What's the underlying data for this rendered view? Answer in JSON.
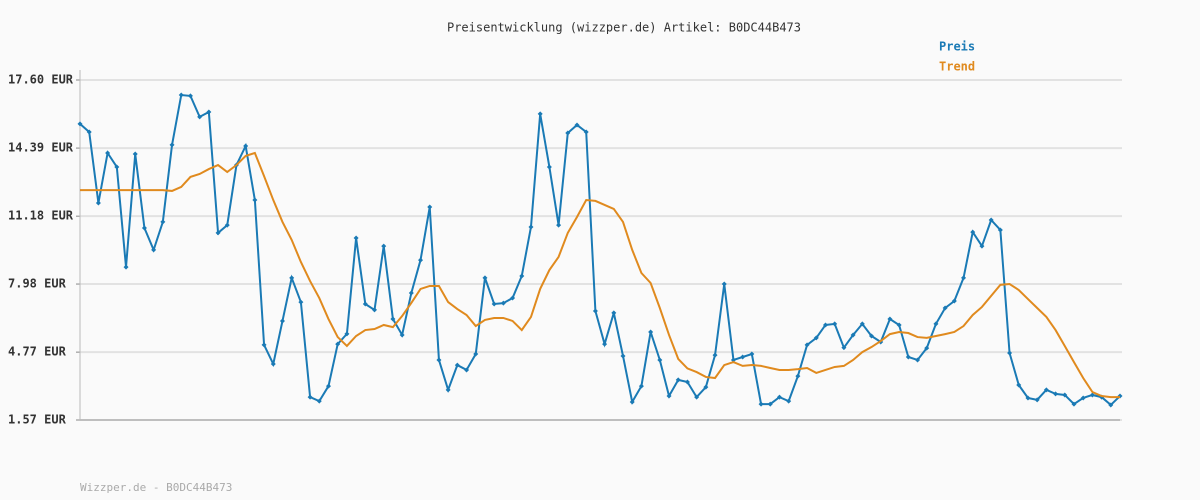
{
  "chart_data": {
    "type": "line",
    "title": "Preisentwicklung (wizzper.de) Artikel: B0DC44B473",
    "series": [
      {
        "name": "Preis",
        "color": "#1a7ab5",
        "markers": true,
        "values": [
          15.53,
          15.15,
          11.8,
          14.16,
          13.5,
          8.78,
          14.11,
          10.62,
          9.59,
          10.91,
          14.54,
          16.89,
          16.85,
          15.86,
          16.09,
          10.39,
          10.76,
          13.59,
          14.49,
          11.94,
          5.11,
          4.21,
          6.24,
          8.27,
          7.13,
          2.65,
          2.46,
          3.17,
          5.15,
          5.63,
          10.15,
          7.04,
          6.76,
          9.77,
          6.33,
          5.58,
          7.56,
          9.11,
          11.61,
          4.4,
          2.99,
          4.16,
          3.93,
          4.68,
          8.27,
          7.04,
          7.08,
          7.32,
          8.36,
          10.67,
          16.0,
          13.5,
          10.76,
          15.1,
          15.48,
          15.15,
          6.71,
          5.15,
          6.62,
          4.59,
          2.42,
          3.17,
          5.72,
          4.4,
          2.7,
          3.46,
          3.36,
          2.65,
          3.12,
          4.63,
          7.98,
          4.4,
          4.54,
          4.68,
          2.32,
          2.32,
          2.65,
          2.46,
          3.64,
          5.11,
          5.44,
          6.05,
          6.1,
          4.98,
          5.58,
          6.1,
          5.53,
          5.25,
          6.33,
          6.05,
          4.54,
          4.4,
          4.96,
          6.1,
          6.85,
          7.18,
          8.27,
          10.43,
          9.77,
          11.0,
          10.53,
          4.73,
          3.22,
          2.61,
          2.52,
          2.99,
          2.8,
          2.75,
          2.32,
          2.61,
          2.75,
          2.65,
          2.28,
          2.7
        ]
      },
      {
        "name": "Trend",
        "color": "#e08a1e",
        "markers": false,
        "values": [
          12.41,
          12.41,
          12.41,
          12.41,
          12.41,
          12.41,
          12.41,
          12.41,
          12.41,
          12.41,
          12.37,
          12.56,
          13.03,
          13.17,
          13.4,
          13.59,
          13.26,
          13.59,
          14.02,
          14.16,
          13.07,
          11.94,
          10.91,
          10.06,
          9.02,
          8.12,
          7.32,
          6.33,
          5.48,
          5.06,
          5.53,
          5.81,
          5.86,
          6.05,
          5.95,
          6.47,
          7.09,
          7.75,
          7.89,
          7.89,
          7.13,
          6.8,
          6.52,
          6.0,
          6.29,
          6.38,
          6.38,
          6.24,
          5.81,
          6.43,
          7.75,
          8.64,
          9.26,
          10.39,
          11.14,
          11.94,
          11.9,
          11.71,
          11.52,
          10.91,
          9.59,
          8.5,
          8.03,
          6.85,
          5.58,
          4.45,
          4.0,
          3.83,
          3.6,
          3.55,
          4.16,
          4.3,
          4.12,
          4.16,
          4.12,
          4.02,
          3.93,
          3.93,
          3.97,
          4.02,
          3.79,
          3.93,
          4.07,
          4.12,
          4.4,
          4.77,
          5.01,
          5.29,
          5.62,
          5.72,
          5.67,
          5.48,
          5.44,
          5.53,
          5.62,
          5.72,
          6.0,
          6.52,
          6.9,
          7.42,
          7.94,
          7.98,
          7.7,
          7.27,
          6.85,
          6.43,
          5.81,
          5.06,
          4.3,
          3.55,
          2.89,
          2.7,
          2.65,
          2.65
        ]
      }
    ],
    "ylim": [
      1.57,
      17.6
    ],
    "yticks": [
      {
        "value": 1.57,
        "label": "1.57 EUR"
      },
      {
        "value": 4.77,
        "label": "4.77 EUR"
      },
      {
        "value": 7.98,
        "label": "7.98 EUR"
      },
      {
        "value": 11.18,
        "label": "11.18 EUR"
      },
      {
        "value": 14.39,
        "label": "14.39 EUR"
      },
      {
        "value": 17.6,
        "label": "17.60 EUR"
      }
    ],
    "grid": true,
    "legend": "top-right"
  },
  "footer": "Wizzper.de - B0DC44B473"
}
